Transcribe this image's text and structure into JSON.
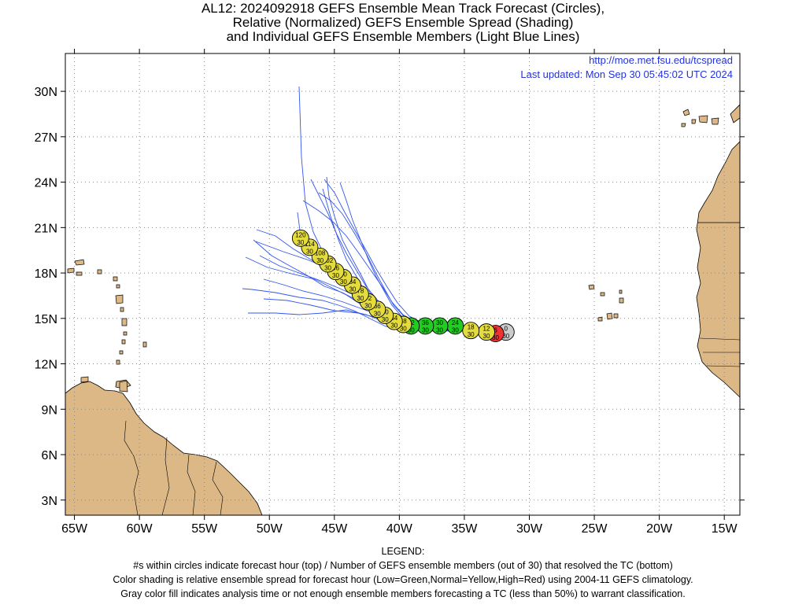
{
  "title": {
    "line1": "AL12: 2024092918 GEFS Ensemble Mean Track Forecast (Circles),",
    "line2": "Relative (Normalized) GEFS Ensemble Spread (Shading)",
    "line3": "and Individual GEFS Ensemble Members (Light Blue Lines)"
  },
  "source_url": "http://moe.met.fsu.edu/tcspread",
  "last_updated": "Last updated: Mon Sep 30 05:45:02 UTC 2024",
  "axes": {
    "lon_labels": [
      "65W",
      "60W",
      "55W",
      "50W",
      "45W",
      "40W",
      "35W",
      "30W",
      "25W",
      "20W",
      "15W"
    ],
    "lon_values": [
      -65,
      -60,
      -55,
      -50,
      -45,
      -40,
      -35,
      -30,
      -25,
      -20,
      -15
    ],
    "lat_labels": [
      "30N",
      "27N",
      "24N",
      "21N",
      "18N",
      "15N",
      "12N",
      "9N",
      "6N",
      "3N"
    ],
    "lat_values": [
      30,
      27,
      24,
      21,
      18,
      15,
      12,
      9,
      6,
      3
    ],
    "lon_range": [
      -65.7,
      -13.8
    ],
    "lat_range": [
      2.0,
      32.5
    ]
  },
  "colors": {
    "land": "#ddb887",
    "member_line": "#3355ee",
    "low": "#22cc22",
    "normal": "#e4dc3c",
    "high": "#ee3333",
    "gray": "#cccccc",
    "grid": "#888888"
  },
  "track_points": [
    {
      "hour": "120",
      "members": "30",
      "lon": -47.6,
      "lat": 20.3,
      "spread": "normal"
    },
    {
      "hour": "114",
      "members": "30",
      "lon": -46.9,
      "lat": 19.7,
      "spread": "normal"
    },
    {
      "hour": "108",
      "members": "30",
      "lon": -46.1,
      "lat": 19.1,
      "spread": "normal"
    },
    {
      "hour": "102",
      "members": "30",
      "lon": -45.5,
      "lat": 18.6,
      "spread": "normal"
    },
    {
      "hour": "96",
      "members": "30",
      "lon": -44.9,
      "lat": 18.1,
      "spread": "normal"
    },
    {
      "hour": "90",
      "members": "30",
      "lon": -44.3,
      "lat": 17.7,
      "spread": "normal"
    },
    {
      "hour": "84",
      "members": "30",
      "lon": -43.6,
      "lat": 17.2,
      "spread": "normal"
    },
    {
      "hour": "78",
      "members": "30",
      "lon": -43.0,
      "lat": 16.6,
      "spread": "normal"
    },
    {
      "hour": "72",
      "members": "30",
      "lon": -42.4,
      "lat": 16.1,
      "spread": "normal"
    },
    {
      "hour": "66",
      "members": "30",
      "lon": -41.7,
      "lat": 15.6,
      "spread": "normal"
    },
    {
      "hour": "60",
      "members": "30",
      "lon": -41.1,
      "lat": 15.2,
      "spread": "normal"
    },
    {
      "hour": "54",
      "members": "30",
      "lon": -40.4,
      "lat": 14.8,
      "spread": "normal"
    },
    {
      "hour": "48",
      "members": "30",
      "lon": -39.7,
      "lat": 14.6,
      "spread": "normal"
    },
    {
      "hour": "42",
      "members": "30",
      "lon": -39.1,
      "lat": 14.5,
      "spread": "low"
    },
    {
      "hour": "36",
      "members": "30",
      "lon": -38.0,
      "lat": 14.5,
      "spread": "low"
    },
    {
      "hour": "30",
      "members": "30",
      "lon": -36.9,
      "lat": 14.5,
      "spread": "low"
    },
    {
      "hour": "24",
      "members": "30",
      "lon": -35.7,
      "lat": 14.5,
      "spread": "low"
    },
    {
      "hour": "18",
      "members": "30",
      "lon": -34.5,
      "lat": 14.2,
      "spread": "normal"
    },
    {
      "hour": "12",
      "members": "30",
      "lon": -33.3,
      "lat": 14.1,
      "spread": "normal"
    },
    {
      "hour": "6",
      "members": "30",
      "lon": -32.6,
      "lat": 14.0,
      "spread": "high"
    },
    {
      "hour": "0",
      "members": "30",
      "lon": -31.8,
      "lat": 14.1,
      "spread": "gray"
    }
  ],
  "legend": {
    "heading": "LEGEND:",
    "line1": "#s within circles indicate forecast hour (top) / Number of GEFS ensemble members (out of 30) that resolved the TC (bottom)",
    "line2": "Color shading is relative ensemble spread for forecast hour (Low=Green,Normal=Yellow,High=Red) using 2004-11 GEFS climatology.",
    "line3": "Gray color fill indicates analysis time or not enough ensemble members forecasting a TC (less than 50%) to warrant classification."
  }
}
